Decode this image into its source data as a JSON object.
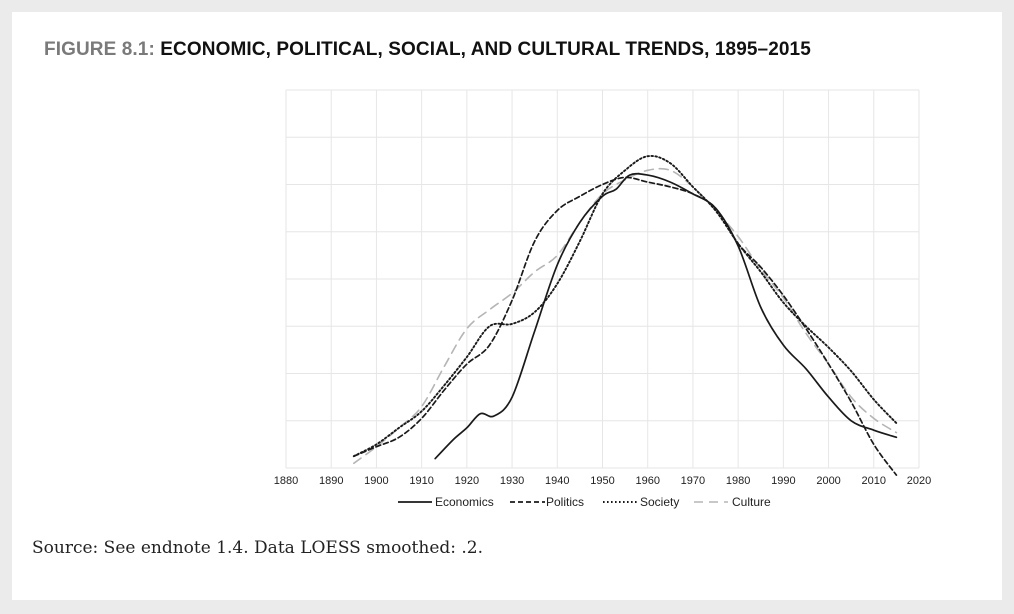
{
  "figure": {
    "label": "FIGURE 8.1: ",
    "title": "ECONOMIC, POLITICAL, SOCIAL, AND CULTURAL TRENDS, 1895–2015",
    "source": "Source: See endnote 1.4. Data LOESS smoothed: .2."
  },
  "chart_data": {
    "type": "line",
    "title": "ECONOMIC, POLITICAL, SOCIAL, AND CULTURAL TRENDS, 1895–2015",
    "xlabel": "",
    "ylabel": "",
    "xlim": [
      1880,
      2020
    ],
    "ylim": [
      0,
      8
    ],
    "x_ticks": [
      1880,
      1890,
      1900,
      1910,
      1920,
      1930,
      1940,
      1950,
      1960,
      1970,
      1980,
      1990,
      2000,
      2010,
      2020
    ],
    "grid": true,
    "y_tick_labels_shown": false,
    "legend_position": "bottom",
    "series": [
      {
        "name": "Economics",
        "style": "solid",
        "color": "#1a1a1a",
        "x": [
          1913,
          1917,
          1920,
          1923,
          1926,
          1930,
          1935,
          1940,
          1945,
          1950,
          1953,
          1956,
          1960,
          1965,
          1970,
          1975,
          1980,
          1985,
          1990,
          1995,
          2000,
          2005,
          2010,
          2015
        ],
        "y": [
          0.2,
          0.6,
          0.85,
          1.15,
          1.1,
          1.5,
          2.9,
          4.3,
          5.2,
          5.75,
          5.9,
          6.2,
          6.2,
          6.05,
          5.8,
          5.5,
          4.7,
          3.4,
          2.6,
          2.1,
          1.5,
          1.0,
          0.8,
          0.65
        ]
      },
      {
        "name": "Politics",
        "style": "dashed",
        "color": "#1a1a1a",
        "x": [
          1895,
          1900,
          1905,
          1910,
          1915,
          1920,
          1925,
          1930,
          1935,
          1940,
          1945,
          1950,
          1955,
          1960,
          1965,
          1970,
          1975,
          1980,
          1985,
          1990,
          1995,
          2000,
          2005,
          2010,
          2015
        ],
        "y": [
          0.25,
          0.45,
          0.65,
          1.05,
          1.65,
          2.2,
          2.6,
          3.55,
          4.8,
          5.45,
          5.75,
          6.0,
          6.15,
          6.05,
          5.95,
          5.8,
          5.5,
          4.75,
          4.25,
          3.65,
          2.95,
          2.2,
          1.4,
          0.5,
          -0.15
        ]
      },
      {
        "name": "Society",
        "style": "dotted",
        "color": "#1a1a1a",
        "x": [
          1895,
          1900,
          1905,
          1910,
          1915,
          1920,
          1925,
          1930,
          1935,
          1940,
          1945,
          1950,
          1955,
          1960,
          1965,
          1970,
          1975,
          1980,
          1985,
          1990,
          1995,
          2000,
          2005,
          2010,
          2015
        ],
        "y": [
          0.25,
          0.5,
          0.85,
          1.2,
          1.75,
          2.35,
          3.0,
          3.05,
          3.3,
          3.9,
          4.8,
          5.8,
          6.3,
          6.6,
          6.45,
          5.95,
          5.45,
          4.75,
          4.15,
          3.5,
          3.0,
          2.55,
          2.05,
          1.45,
          0.95
        ]
      },
      {
        "name": "Culture",
        "style": "long-dash",
        "color": "#b5b5b5",
        "x": [
          1895,
          1900,
          1905,
          1910,
          1915,
          1920,
          1925,
          1930,
          1935,
          1940,
          1945,
          1950,
          1955,
          1960,
          1965,
          1970,
          1975,
          1980,
          1985,
          1990,
          1995,
          2000,
          2005,
          2010,
          2015
        ],
        "y": [
          0.1,
          0.45,
          0.85,
          1.3,
          2.15,
          2.95,
          3.35,
          3.7,
          4.15,
          4.5,
          5.2,
          5.8,
          6.1,
          6.3,
          6.3,
          5.95,
          5.45,
          4.9,
          4.2,
          3.6,
          2.85,
          2.2,
          1.5,
          1.05,
          0.75
        ]
      }
    ]
  }
}
